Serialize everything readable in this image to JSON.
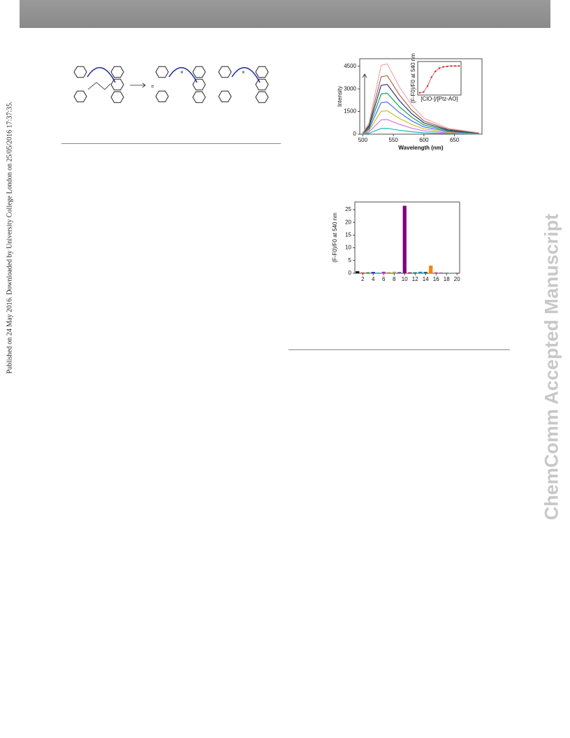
{
  "side_note": "Published on 24 May 2016. Downloaded by University College London on 25/05/2016 17:37:35.",
  "watermark": "ChemComm Accepted Manuscript",
  "chart_data": [
    {
      "type": "line",
      "xlabel": "Wavelength (nm)",
      "ylabel": "Intensity",
      "x": [
        500,
        510,
        520,
        530,
        540,
        560,
        580,
        600,
        640,
        690
      ],
      "xlim": [
        495,
        695
      ],
      "xticks": [
        500,
        550,
        600,
        650
      ],
      "ylim": [
        0,
        5000
      ],
      "yticks": [
        0,
        1500,
        3000,
        4500
      ],
      "series": [
        {
          "color": "#00b0b0",
          "values": [
            8,
            60,
            220,
            380,
            388,
            260,
            160,
            88,
            32,
            8
          ]
        },
        {
          "color": "#e060e0",
          "values": [
            20,
            150,
            550,
            950,
            970,
            650,
            400,
            220,
            80,
            20
          ]
        },
        {
          "color": "#c0c000",
          "values": [
            32,
            240,
            880,
            1520,
            1552,
            1040,
            640,
            352,
            128,
            32
          ]
        },
        {
          "color": "#4060ff",
          "values": [
            44,
            330,
            1210,
            2090,
            2134,
            1430,
            880,
            484,
            176,
            44
          ]
        },
        {
          "color": "#00a040",
          "values": [
            56,
            420,
            1540,
            2660,
            2716,
            1820,
            1120,
            616,
            224,
            56
          ]
        },
        {
          "color": "#202080",
          "values": [
            68,
            510,
            1870,
            3230,
            3298,
            2210,
            1360,
            748,
            272,
            68
          ]
        },
        {
          "color": "#a06030",
          "values": [
            80,
            600,
            2200,
            3800,
            3880,
            2600,
            1600,
            880,
            320,
            80
          ]
        },
        {
          "color": "#f0a0b0",
          "values": [
            96,
            720,
            2640,
            4560,
            4656,
            3120,
            1920,
            1056,
            384,
            96
          ]
        }
      ]
    },
    {
      "type": "line",
      "markers": true,
      "xlabel": "[ClO-]/[Ptz-AO]",
      "ylabel": "(F-F0)/F0 at 540 nm",
      "x": [
        0,
        1,
        2,
        3,
        4,
        5,
        6,
        7,
        8,
        9,
        10
      ],
      "xlim": [
        -0.5,
        10.5
      ],
      "ylim": [
        -5,
        70
      ],
      "series": [
        {
          "color": "#d02020",
          "values": [
            0,
            2,
            15,
            35,
            48,
            55,
            58,
            59,
            60,
            60,
            60
          ]
        }
      ]
    },
    {
      "type": "bar",
      "ylabel": "(F-F0)/F0 at 540 nm",
      "categories": [
        null,
        "2",
        null,
        "4",
        null,
        "6",
        null,
        "8",
        null,
        "10",
        null,
        "12",
        null,
        "14",
        null,
        "16",
        null,
        "18",
        null,
        "20"
      ],
      "values": [
        0.8,
        0.3,
        0.4,
        0.5,
        0.3,
        0.6,
        0.4,
        0.6,
        0.5,
        26.5,
        0.3,
        0.4,
        0.6,
        0.5,
        3,
        0.4,
        0.3,
        0.3,
        0.2,
        0.2
      ],
      "colors": [
        "#111111",
        "#e02020",
        "#20a020",
        "#2020c0",
        "#20c0c0",
        "#d020d0",
        "#a0a020",
        "#c0a060",
        "#6060a0",
        "#800080",
        "#800000",
        "#008080",
        "#2080c0",
        "#006060",
        "#ff8000",
        "#c06080",
        "#8060c0",
        "#909090",
        "#40a0a0",
        "#a04040"
      ],
      "ylim": [
        0,
        28
      ],
      "yticks": [
        0,
        5,
        10,
        15,
        20,
        25
      ]
    }
  ]
}
